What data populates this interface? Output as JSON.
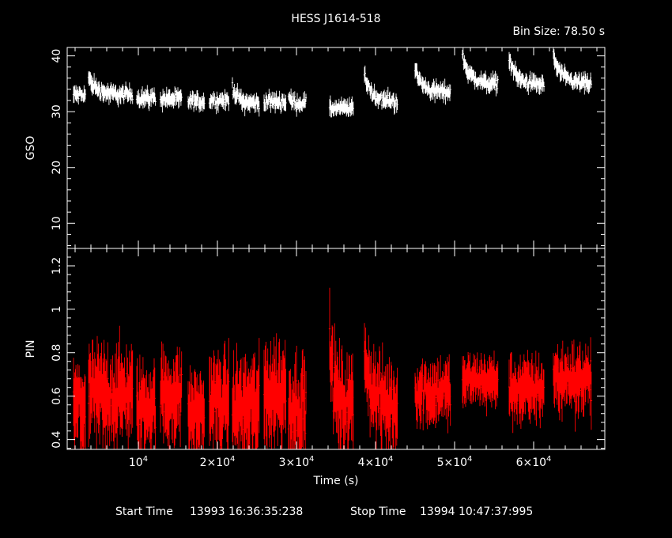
{
  "chart_data": {
    "type": "scatter",
    "title": "HESS J1614-518",
    "bin_size_label": "Bin Size:",
    "bin_size_value": "78.50 s",
    "xlabel": "Time (s)",
    "xlim": [
      1000,
      69000
    ],
    "xticks": [
      {
        "value": 10000,
        "mantissa": "",
        "exponent": "4"
      },
      {
        "value": 20000,
        "mantissa": "2",
        "exponent": "4"
      },
      {
        "value": 30000,
        "mantissa": "3",
        "exponent": "4"
      },
      {
        "value": 40000,
        "mantissa": "4",
        "exponent": "4"
      },
      {
        "value": 50000,
        "mantissa": "5",
        "exponent": "4"
      },
      {
        "value": 60000,
        "mantissa": "6",
        "exponent": "4"
      }
    ],
    "start_label": "Start Time",
    "start_time": "13993 16:36:35:238",
    "stop_label": "Stop Time",
    "stop_time": "13994 10:47:37:995",
    "panels": [
      {
        "name": "GSO",
        "ylabel": "GSO",
        "color": "#ffffff",
        "ylim": [
          5.5,
          41.5
        ],
        "ytick_labels": [
          "10",
          "20",
          "30",
          "40"
        ],
        "ytick_values": [
          10,
          20,
          30,
          40
        ],
        "segments": [
          {
            "x0": 1800,
            "x1": 3300,
            "level": 33.0,
            "noise": 0.8,
            "err": 1.1,
            "decay": 0
          },
          {
            "x0": 3700,
            "x1": 9300,
            "level": 33.0,
            "noise": 0.8,
            "err": 1.1,
            "decay": 3
          },
          {
            "x0": 9800,
            "x1": 12200,
            "level": 32.5,
            "noise": 0.8,
            "err": 1.1,
            "decay": 0
          },
          {
            "x0": 12800,
            "x1": 15500,
            "level": 32.3,
            "noise": 0.8,
            "err": 1.1,
            "decay": 0
          },
          {
            "x0": 16300,
            "x1": 18400,
            "level": 31.8,
            "noise": 0.8,
            "err": 1.1,
            "decay": 0
          },
          {
            "x0": 19000,
            "x1": 21500,
            "level": 32.0,
            "noise": 0.8,
            "err": 1.1,
            "decay": 0
          },
          {
            "x0": 21900,
            "x1": 25300,
            "level": 31.5,
            "noise": 0.8,
            "err": 1.1,
            "decay": 3
          },
          {
            "x0": 25900,
            "x1": 28700,
            "level": 31.8,
            "noise": 0.8,
            "err": 1.1,
            "decay": 0
          },
          {
            "x0": 29000,
            "x1": 31200,
            "level": 31.5,
            "noise": 0.8,
            "err": 1.1,
            "decay": 1
          },
          {
            "x0": 34200,
            "x1": 37200,
            "level": 30.6,
            "noise": 0.7,
            "err": 1.1,
            "decay": 0
          },
          {
            "x0": 38600,
            "x1": 42800,
            "level": 31.8,
            "noise": 0.8,
            "err": 1.1,
            "decay": 5
          },
          {
            "x0": 45000,
            "x1": 49500,
            "level": 33.5,
            "noise": 0.8,
            "err": 1.1,
            "decay": 4
          },
          {
            "x0": 51000,
            "x1": 55500,
            "level": 35.0,
            "noise": 0.8,
            "err": 1.1,
            "decay": 5
          },
          {
            "x0": 56900,
            "x1": 61300,
            "level": 34.8,
            "noise": 0.8,
            "err": 1.1,
            "decay": 5
          },
          {
            "x0": 62500,
            "x1": 67300,
            "level": 35.0,
            "noise": 0.8,
            "err": 1.1,
            "decay": 5
          }
        ]
      },
      {
        "name": "PIN",
        "ylabel": "PIN",
        "color": "#ff0000",
        "ylim": [
          0.355,
          1.28
        ],
        "ytick_labels": [
          "0.4",
          "0.6",
          "0.8",
          "1",
          "1.2"
        ],
        "ytick_values": [
          0.4,
          0.6,
          0.8,
          1.0,
          1.2
        ],
        "segments": [
          {
            "x0": 1800,
            "x1": 3300,
            "level": 0.55,
            "noise": 0.08,
            "err": 0.14,
            "decay": 0
          },
          {
            "x0": 3700,
            "x1": 9300,
            "level": 0.6,
            "noise": 0.1,
            "err": 0.15,
            "decay": 0
          },
          {
            "x0": 9800,
            "x1": 12200,
            "level": 0.55,
            "noise": 0.08,
            "err": 0.14,
            "decay": 0
          },
          {
            "x0": 12800,
            "x1": 15500,
            "level": 0.6,
            "noise": 0.08,
            "err": 0.14,
            "decay": 0
          },
          {
            "x0": 16300,
            "x1": 18400,
            "level": 0.52,
            "noise": 0.08,
            "err": 0.14,
            "decay": 0
          },
          {
            "x0": 19000,
            "x1": 21500,
            "level": 0.58,
            "noise": 0.08,
            "err": 0.15,
            "decay": 0
          },
          {
            "x0": 21900,
            "x1": 25300,
            "level": 0.55,
            "noise": 0.1,
            "err": 0.16,
            "decay": 0
          },
          {
            "x0": 25900,
            "x1": 28700,
            "level": 0.62,
            "noise": 0.1,
            "err": 0.16,
            "decay": 0
          },
          {
            "x0": 29000,
            "x1": 31200,
            "level": 0.55,
            "noise": 0.1,
            "err": 0.16,
            "decay": 0
          },
          {
            "x0": 34200,
            "x1": 37200,
            "level": 0.55,
            "noise": 0.1,
            "err": 0.15,
            "decay": 0.25
          },
          {
            "x0": 38600,
            "x1": 42800,
            "level": 0.55,
            "noise": 0.09,
            "err": 0.14,
            "decay": 0.25
          },
          {
            "x0": 45000,
            "x1": 49500,
            "level": 0.62,
            "noise": 0.07,
            "err": 0.1,
            "decay": 0
          },
          {
            "x0": 51000,
            "x1": 55500,
            "level": 0.67,
            "noise": 0.05,
            "err": 0.08,
            "decay": 0
          },
          {
            "x0": 56900,
            "x1": 61300,
            "level": 0.63,
            "noise": 0.06,
            "err": 0.1,
            "decay": 0
          },
          {
            "x0": 62500,
            "x1": 67300,
            "level": 0.68,
            "noise": 0.07,
            "err": 0.1,
            "decay": 0
          }
        ]
      }
    ]
  }
}
